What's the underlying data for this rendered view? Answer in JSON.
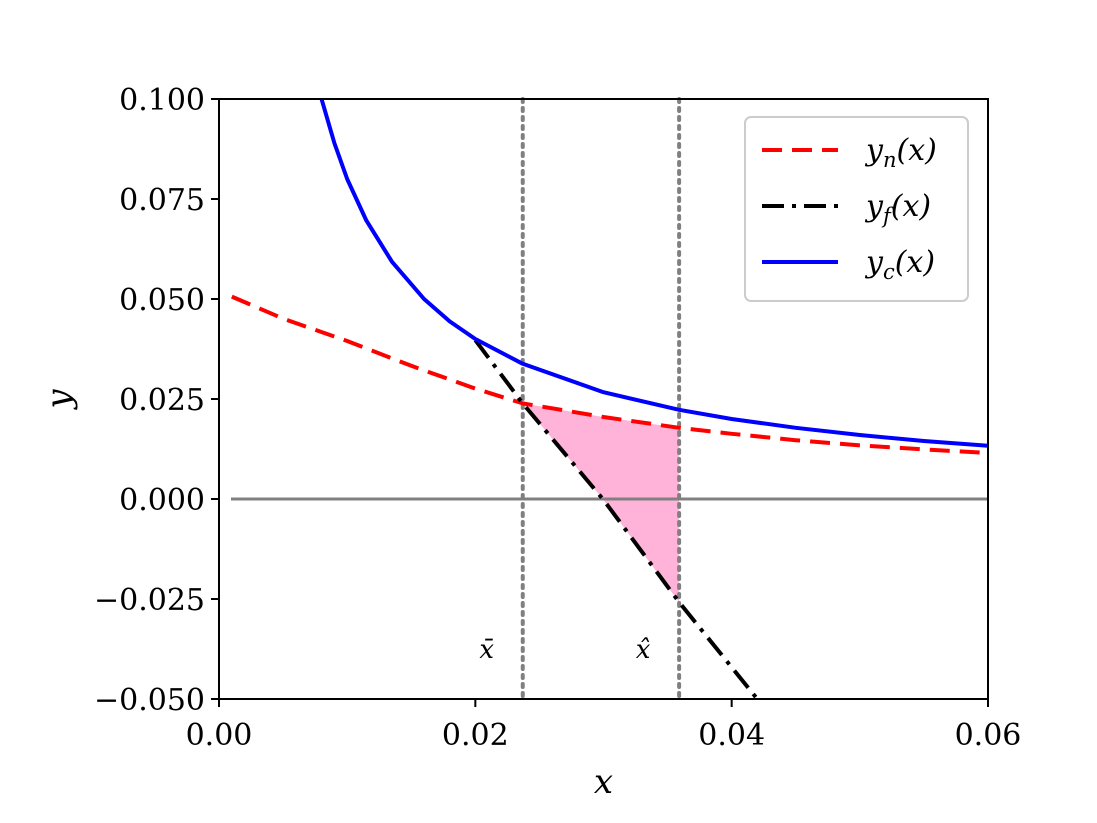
{
  "chart_data": {
    "type": "line",
    "xlabel": "x",
    "ylabel": "y",
    "xlim": [
      0.0,
      0.06
    ],
    "ylim": [
      -0.05,
      0.1
    ],
    "x_ticks": [
      0.0,
      0.02,
      0.04,
      0.06
    ],
    "x_tick_labels": [
      "0.00",
      "0.02",
      "0.04",
      "0.06"
    ],
    "y_ticks": [
      0.1,
      0.075,
      0.05,
      0.025,
      0.0,
      -0.025,
      -0.05
    ],
    "y_tick_labels": [
      "0.100",
      "0.075",
      "0.050",
      "0.025",
      "0.000",
      "−0.025",
      "−0.050"
    ],
    "grid": false,
    "legend_position": "top-right",
    "series": [
      {
        "name": "y_n(x)",
        "label_base": "y",
        "label_sub": "n",
        "style": "dashed",
        "color": "#ff0000",
        "points": [
          [
            0.001,
            0.0506
          ],
          [
            0.005,
            0.0451
          ],
          [
            0.01,
            0.0395
          ],
          [
            0.015,
            0.0333
          ],
          [
            0.02,
            0.0276
          ],
          [
            0.0237,
            0.0239
          ],
          [
            0.03,
            0.0205
          ],
          [
            0.0359,
            0.0178
          ],
          [
            0.04,
            0.0163
          ],
          [
            0.045,
            0.0147
          ],
          [
            0.05,
            0.0134
          ],
          [
            0.055,
            0.0124
          ],
          [
            0.06,
            0.0115
          ]
        ]
      },
      {
        "name": "y_f(x)",
        "label_base": "y",
        "label_sub": "f",
        "style": "dashdot",
        "color": "#000000",
        "points": [
          [
            0.02,
            0.0397
          ],
          [
            0.0237,
            0.0239
          ],
          [
            0.03,
            -0.0002
          ],
          [
            0.0359,
            -0.0258
          ],
          [
            0.042,
            -0.05
          ]
        ]
      },
      {
        "name": "y_c(x)",
        "label_base": "y",
        "label_sub": "c",
        "style": "solid",
        "color": "#0000ff",
        "points": [
          [
            0.008,
            0.1
          ],
          [
            0.009,
            0.089
          ],
          [
            0.01,
            0.08
          ],
          [
            0.0115,
            0.0696
          ],
          [
            0.0135,
            0.0593
          ],
          [
            0.016,
            0.05
          ],
          [
            0.018,
            0.0444
          ],
          [
            0.02,
            0.04
          ],
          [
            0.0237,
            0.0338
          ],
          [
            0.03,
            0.0267
          ],
          [
            0.0359,
            0.0223
          ],
          [
            0.04,
            0.02
          ],
          [
            0.045,
            0.0178
          ],
          [
            0.05,
            0.016
          ],
          [
            0.055,
            0.0145
          ],
          [
            0.06,
            0.0133
          ]
        ]
      }
    ],
    "reference_lines": [
      {
        "orientation": "horizontal",
        "y": 0.0,
        "color": "#808080",
        "style": "solid"
      },
      {
        "orientation": "vertical",
        "x": 0.0237,
        "color": "#808080",
        "style": "dotted",
        "label": "x̄"
      },
      {
        "orientation": "vertical",
        "x": 0.0359,
        "color": "#808080",
        "style": "dotted",
        "label": "x̂"
      }
    ],
    "shaded_region": {
      "color": "#ffb3d9",
      "between": [
        "y_f(x)",
        "y_n(x)"
      ],
      "x_range": [
        0.0237,
        0.0359
      ]
    }
  }
}
